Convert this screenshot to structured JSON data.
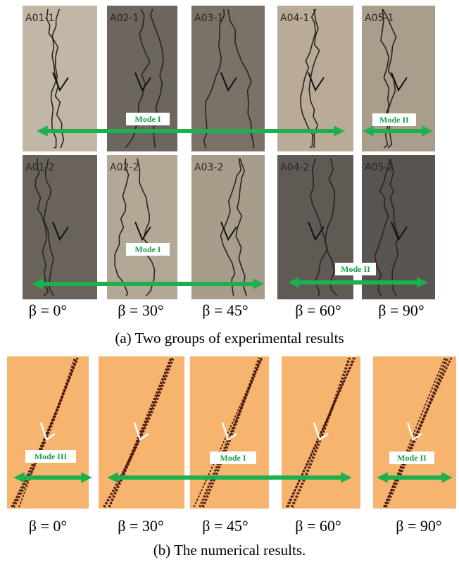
{
  "experimental": {
    "rows": [
      {
        "specimens": [
          "A01-1",
          "A02-1",
          "A03-1",
          "A04-1",
          "A05-1"
        ],
        "modes": [
          "Mode I",
          "Mode II"
        ]
      },
      {
        "specimens": [
          "A01-2",
          "A02-2",
          "A03-2",
          "A04-2",
          "A05-2"
        ],
        "modes": [
          "Mode I",
          "Mode II"
        ]
      }
    ],
    "angles": [
      "β = 0°",
      "β = 30°",
      "β = 45°",
      "β = 60°",
      "β = 90°"
    ],
    "caption": "(a) Two groups of experimental results"
  },
  "numerical": {
    "modes": [
      "Mode III",
      "Mode I",
      "Mode II"
    ],
    "angles": [
      "β = 0°",
      "β = 30°",
      "β = 45°",
      "β = 60°",
      "β = 90°"
    ],
    "caption": "(b) The numerical results."
  }
}
